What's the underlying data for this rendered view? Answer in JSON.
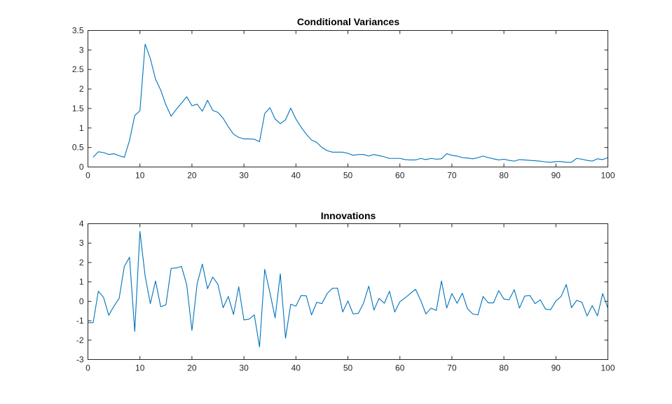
{
  "figure": {
    "background": "#ffffff"
  },
  "chart_data": [
    {
      "type": "line",
      "title": "Conditional Variances",
      "xlabel": "",
      "ylabel": "",
      "xlim": [
        0,
        100
      ],
      "ylim": [
        0,
        3.5
      ],
      "xticks": [
        0,
        10,
        20,
        30,
        40,
        50,
        60,
        70,
        80,
        90,
        100
      ],
      "yticks": [
        0,
        0.5,
        1,
        1.5,
        2,
        2.5,
        3,
        3.5
      ],
      "grid": false,
      "series": [
        {
          "color": "#0072BD",
          "x": [
            1,
            2,
            3,
            4,
            5,
            6,
            7,
            8,
            9,
            10,
            11,
            12,
            13,
            14,
            15,
            16,
            17,
            18,
            19,
            20,
            21,
            22,
            23,
            24,
            25,
            26,
            27,
            28,
            29,
            30,
            31,
            32,
            33,
            34,
            35,
            36,
            37,
            38,
            39,
            40,
            41,
            42,
            43,
            44,
            45,
            46,
            47,
            48,
            49,
            50,
            51,
            52,
            53,
            54,
            55,
            56,
            57,
            58,
            59,
            60,
            61,
            62,
            63,
            64,
            65,
            66,
            67,
            68,
            69,
            70,
            71,
            72,
            73,
            74,
            75,
            76,
            77,
            78,
            79,
            80,
            81,
            82,
            83,
            84,
            85,
            86,
            87,
            88,
            89,
            90,
            91,
            92,
            93,
            94,
            95,
            96,
            97,
            98,
            99,
            100
          ],
          "y": [
            0.25,
            0.39,
            0.37,
            0.32,
            0.34,
            0.29,
            0.25,
            0.68,
            1.32,
            1.44,
            3.15,
            2.78,
            2.25,
            1.97,
            1.59,
            1.3,
            1.48,
            1.64,
            1.8,
            1.57,
            1.61,
            1.43,
            1.71,
            1.45,
            1.4,
            1.25,
            1.03,
            0.84,
            0.76,
            0.72,
            0.72,
            0.71,
            0.65,
            1.37,
            1.52,
            1.23,
            1.11,
            1.21,
            1.51,
            1.23,
            1.02,
            0.84,
            0.69,
            0.63,
            0.5,
            0.42,
            0.38,
            0.38,
            0.38,
            0.35,
            0.3,
            0.32,
            0.32,
            0.28,
            0.32,
            0.29,
            0.26,
            0.22,
            0.22,
            0.22,
            0.19,
            0.18,
            0.18,
            0.22,
            0.19,
            0.22,
            0.2,
            0.21,
            0.34,
            0.3,
            0.28,
            0.24,
            0.23,
            0.21,
            0.24,
            0.28,
            0.24,
            0.21,
            0.18,
            0.2,
            0.17,
            0.15,
            0.19,
            0.18,
            0.17,
            0.16,
            0.15,
            0.13,
            0.12,
            0.14,
            0.14,
            0.12,
            0.12,
            0.22,
            0.2,
            0.17,
            0.15,
            0.21,
            0.19,
            0.24
          ]
        }
      ]
    },
    {
      "type": "line",
      "title": "Innovations",
      "xlabel": "",
      "ylabel": "",
      "xlim": [
        0,
        100
      ],
      "ylim": [
        -3,
        4
      ],
      "xticks": [
        0,
        10,
        20,
        30,
        40,
        50,
        60,
        70,
        80,
        90,
        100
      ],
      "yticks": [
        -3,
        -2,
        -1,
        0,
        1,
        2,
        3,
        4
      ],
      "grid": false,
      "series": [
        {
          "color": "#0072BD",
          "x": [
            0,
            1,
            2,
            3,
            4,
            5,
            6,
            7,
            8,
            9,
            10,
            11,
            12,
            13,
            14,
            15,
            16,
            17,
            18,
            19,
            20,
            21,
            22,
            23,
            24,
            25,
            26,
            27,
            28,
            29,
            30,
            31,
            32,
            33,
            34,
            35,
            36,
            37,
            38,
            39,
            40,
            41,
            42,
            43,
            44,
            45,
            46,
            47,
            48,
            49,
            50,
            51,
            52,
            53,
            54,
            55,
            56,
            57,
            58,
            59,
            60,
            61,
            62,
            63,
            64,
            65,
            66,
            67,
            68,
            69,
            70,
            71,
            72,
            73,
            74,
            75,
            76,
            77,
            78,
            79,
            80,
            81,
            82,
            83,
            84,
            85,
            86,
            87,
            88,
            89,
            90,
            91,
            92,
            93,
            94,
            95,
            96,
            97,
            98,
            99,
            100
          ],
          "y": [
            -1.1,
            -1.1,
            0.52,
            0.2,
            -0.72,
            -0.25,
            0.15,
            1.8,
            2.27,
            -1.55,
            3.6,
            1.3,
            -0.12,
            1.05,
            -0.28,
            -0.18,
            1.7,
            1.72,
            1.8,
            0.85,
            -1.5,
            0.9,
            1.92,
            0.65,
            1.25,
            0.88,
            -0.33,
            0.25,
            -0.68,
            0.75,
            -0.96,
            -0.92,
            -0.7,
            -2.35,
            1.65,
            0.45,
            -0.85,
            1.42,
            -1.9,
            -0.15,
            -0.25,
            0.3,
            0.28,
            -0.7,
            -0.05,
            -0.12,
            0.4,
            0.67,
            0.68,
            -0.55,
            0.02,
            -0.65,
            -0.62,
            -0.1,
            0.78,
            -0.45,
            0.15,
            -0.1,
            0.52,
            -0.55,
            -0.02,
            0.18,
            0.4,
            0.62,
            0.05,
            -0.65,
            -0.35,
            -0.47,
            1.05,
            -0.35,
            0.4,
            -0.1,
            0.42,
            -0.38,
            -0.65,
            -0.7,
            0.25,
            -0.08,
            -0.08,
            0.55,
            0.12,
            0.08,
            0.6,
            -0.35,
            0.27,
            0.3,
            -0.12,
            0.08,
            -0.4,
            -0.43,
            0.02,
            0.25,
            0.87,
            -0.33,
            0.05,
            -0.05,
            -0.75,
            -0.22,
            -0.75,
            0.4,
            -0.35
          ]
        }
      ]
    }
  ]
}
